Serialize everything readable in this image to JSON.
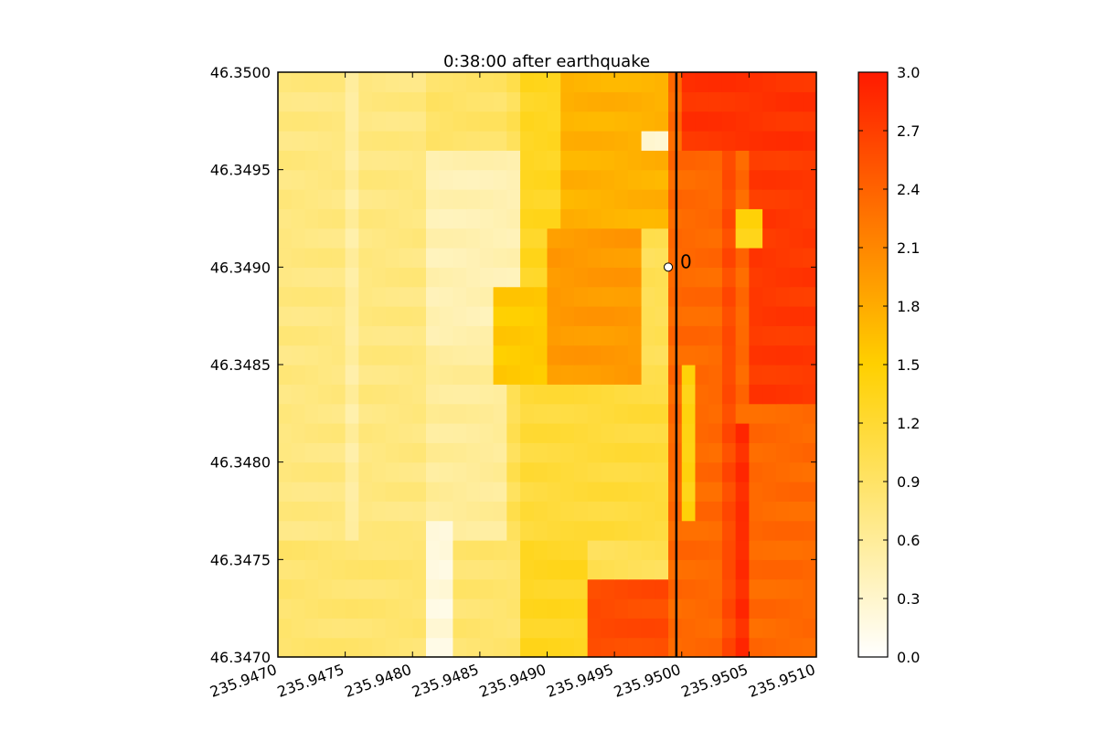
{
  "chart_data": {
    "type": "heatmap",
    "title": "0:38:00 after earthquake",
    "xlabel": "",
    "ylabel": "",
    "xlim": [
      235.947,
      235.951
    ],
    "ylim": [
      46.347,
      46.35
    ],
    "x_ticks": [
      "235.9470",
      "235.9475",
      "235.9480",
      "235.9485",
      "235.9490",
      "235.9495",
      "235.9500",
      "235.9505",
      "235.9510"
    ],
    "x_tick_values": [
      235.947,
      235.9475,
      235.948,
      235.9485,
      235.949,
      235.9495,
      235.95,
      235.9505,
      235.951
    ],
    "y_ticks": [
      "46.3470",
      "46.3475",
      "46.3480",
      "46.3485",
      "46.3490",
      "46.3495",
      "46.3500"
    ],
    "y_tick_values": [
      46.347,
      46.3475,
      46.348,
      46.3485,
      46.349,
      46.3495,
      46.35
    ],
    "colorbar": {
      "min": 0.0,
      "max": 3.0,
      "ticks": [
        "0.0",
        "0.3",
        "0.6",
        "0.9",
        "1.2",
        "1.5",
        "1.8",
        "2.1",
        "2.4",
        "2.7",
        "3.0"
      ],
      "tick_values": [
        0,
        0.3,
        0.6,
        0.9,
        1.2,
        1.5,
        1.8,
        2.1,
        2.4,
        2.7,
        3.0
      ],
      "colormap": [
        "#ffffff",
        "#ffd000",
        "#ff1a00"
      ]
    },
    "grid": false,
    "vertical_line_x": 235.94996,
    "gauge": {
      "label": "0",
      "x": 235.9499,
      "y": 46.349,
      "marker_color": "#ffffff"
    },
    "grid_cols": 40,
    "grid_rows": 30,
    "regions": [
      {
        "x0": 235.947,
        "x1": 235.9481,
        "y0": 46.347,
        "y1": 46.35,
        "value": 0.75
      },
      {
        "x0": 235.9475,
        "x1": 235.9476,
        "y0": 46.347,
        "y1": 46.35,
        "value": 0.55
      },
      {
        "x0": 235.9481,
        "x1": 235.9488,
        "y0": 46.3486,
        "y1": 46.3496,
        "value": 0.45
      },
      {
        "x0": 235.9481,
        "x1": 235.9487,
        "y0": 46.3476,
        "y1": 46.3486,
        "value": 0.6
      },
      {
        "x0": 235.9481,
        "x1": 235.9487,
        "y0": 46.3496,
        "y1": 46.35,
        "value": 0.9
      },
      {
        "x0": 235.9488,
        "x1": 235.9491,
        "y0": 46.3482,
        "y1": 46.35,
        "value": 1.3
      },
      {
        "x0": 235.9486,
        "x1": 235.9492,
        "y0": 46.3484,
        "y1": 46.3489,
        "value": 1.55
      },
      {
        "x0": 235.949,
        "x1": 235.94975,
        "y0": 46.3484,
        "y1": 46.34925,
        "value": 1.95
      },
      {
        "x0": 235.9491,
        "x1": 235.94995,
        "y0": 46.34925,
        "y1": 46.35,
        "value": 1.75
      },
      {
        "x0": 235.9488,
        "x1": 235.94995,
        "y0": 46.3476,
        "y1": 46.3484,
        "value": 1.15
      },
      {
        "x0": 235.947,
        "x1": 235.9488,
        "y0": 46.347,
        "y1": 46.3476,
        "value": 0.85
      },
      {
        "x0": 235.9481,
        "x1": 235.9483,
        "y0": 46.347,
        "y1": 46.3477,
        "value": 0.2
      },
      {
        "x0": 235.9488,
        "x1": 235.9493,
        "y0": 46.347,
        "y1": 46.3476,
        "value": 1.3
      },
      {
        "x0": 235.9493,
        "x1": 235.94995,
        "y0": 46.347,
        "y1": 46.3474,
        "value": 2.6
      },
      {
        "x0": 235.94995,
        "x1": 235.951,
        "y0": 46.347,
        "y1": 46.35,
        "value": 2.35
      },
      {
        "x0": 235.95025,
        "x1": 235.9504,
        "y0": 46.347,
        "y1": 46.35,
        "value": 2.6
      },
      {
        "x0": 235.9504,
        "x1": 235.95055,
        "y0": 46.347,
        "y1": 46.3482,
        "value": 2.85
      },
      {
        "x0": 235.95055,
        "x1": 235.951,
        "y0": 46.3483,
        "y1": 46.35,
        "value": 2.75
      },
      {
        "x0": 235.95,
        "x1": 235.951,
        "y0": 46.34965,
        "y1": 46.35,
        "value": 2.8
      },
      {
        "x0": 235.95,
        "x1": 235.95015,
        "y0": 46.3477,
        "y1": 46.3485,
        "value": 1.4
      },
      {
        "x0": 235.95045,
        "x1": 235.9506,
        "y0": 46.3491,
        "y1": 46.3493,
        "value": 1.4
      },
      {
        "x0": 235.94975,
        "x1": 235.9499,
        "y0": 46.34958,
        "y1": 46.34968,
        "value": 0.3
      }
    ]
  }
}
